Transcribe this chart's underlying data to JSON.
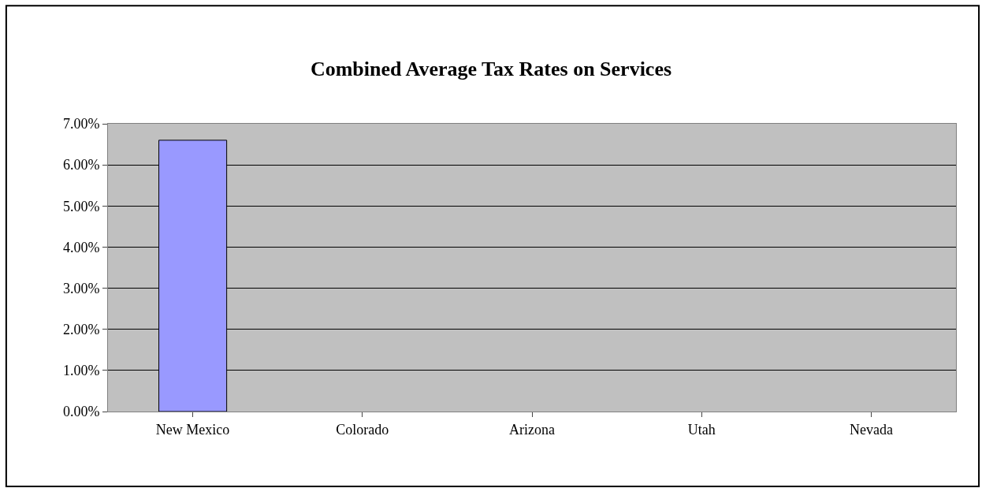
{
  "chart_data": {
    "type": "bar",
    "title": "Combined Average Tax Rates on Services",
    "categories": [
      "New Mexico",
      "Colorado",
      "Arizona",
      "Utah",
      "Nevada"
    ],
    "values": [
      6.6,
      null,
      null,
      null,
      null
    ],
    "color": "#9999ff",
    "ylim": [
      0,
      7
    ],
    "yticks": [
      {
        "value": 0,
        "label": "0.00%"
      },
      {
        "value": 1,
        "label": "1.00%"
      },
      {
        "value": 2,
        "label": "2.00%"
      },
      {
        "value": 3,
        "label": "3.00%"
      },
      {
        "value": 4,
        "label": "4.00%"
      },
      {
        "value": 5,
        "label": "5.00%"
      },
      {
        "value": 6,
        "label": "6.00%"
      },
      {
        "value": 7,
        "label": "7.00%"
      }
    ],
    "grid": "y",
    "legend": false
  }
}
